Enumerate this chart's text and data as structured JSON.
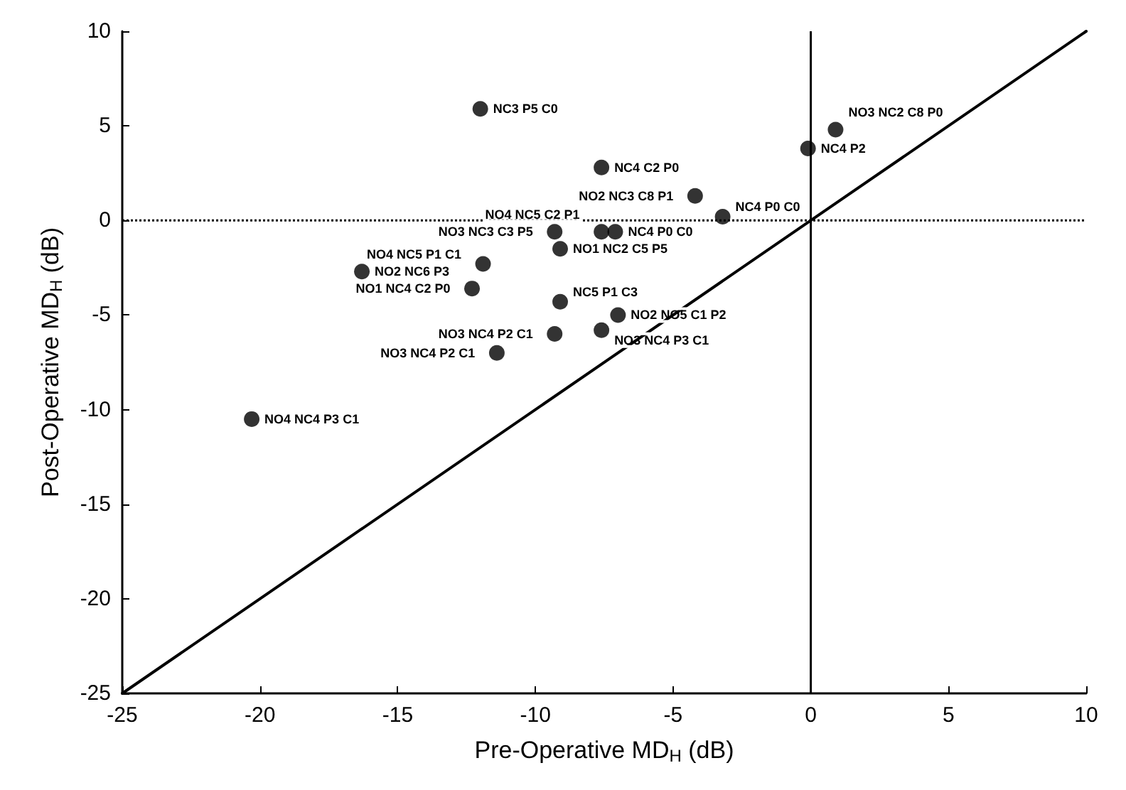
{
  "chart_data": {
    "type": "scatter",
    "xlabel": "Pre-Operative MD$_{H}$ (dB)",
    "ylabel": "Post-Operative MD$_{H}$ (dB)",
    "xlim": [
      -25,
      10
    ],
    "ylim": [
      -25,
      10
    ],
    "xticks": [
      -25,
      -20,
      -15,
      -10,
      -5,
      0,
      5,
      10
    ],
    "yticks": [
      -25,
      -20,
      -15,
      -10,
      -5,
      0,
      5,
      10
    ],
    "grid": false,
    "marker": "circle",
    "series": [
      {
        "color": "#000000",
        "x": [
          -12,
          -7.6,
          -0.1,
          0.9,
          -4.2,
          -3.2,
          -9.3,
          -9.1,
          -7.6,
          -7.1,
          -11.9,
          -16.3,
          -12.3,
          -9.1,
          -7,
          -7.6,
          -9.3,
          -11.4,
          -20.3
        ],
        "values": [
          5.9,
          2.8,
          3.8,
          4.8,
          1.3,
          0.2,
          -0.6,
          -1.5,
          -0.6,
          -0.6,
          -2.3,
          -2.7,
          -3.6,
          -4.3,
          -5,
          -5.8,
          -6,
          -7,
          -10.5
        ]
      },
      {
        "type": "line",
        "color": "#000000",
        "line_style": "solid",
        "marker": "none",
        "x": [
          -25,
          10
        ],
        "values": [
          -25,
          10
        ]
      }
    ],
    "ref_lines": [
      {
        "axis": "x",
        "value": 0,
        "line_style": "solid",
        "color": "#000000"
      },
      {
        "axis": "y",
        "value": 0,
        "line_style": "dotted",
        "color": "#000000"
      }
    ],
    "annotations": [
      {
        "text": "NC3 P5 C0",
        "x": -12,
        "y": 5.9
      },
      {
        "text": "NC4 C2 P0",
        "x": -7.6,
        "y": 2.8
      },
      {
        "text": "NC4 P2",
        "x": -0.1,
        "y": 3.8
      },
      {
        "text": "NO3 NC2 C8 P0",
        "x": 0.9,
        "y": 4.8
      },
      {
        "text": "NO2 NC3 C8 P1",
        "x": -4.2,
        "y": 1.3
      },
      {
        "text": "NC4 P0 C0",
        "x": -3.2,
        "y": 0.2
      },
      {
        "text": "NO3 NC3 C3 P5",
        "x": -9.3,
        "y": -0.6
      },
      {
        "text": "NO1 NC2 C5 P5",
        "x": -9.1,
        "y": -1.5
      },
      {
        "text": "NO4 NC5 C2 P1",
        "x": -7.6,
        "y": -0.6
      },
      {
        "text": "NC4 P0 C0",
        "x": -7.1,
        "y": -0.6
      },
      {
        "text": "NO4 NC5 P1 C1",
        "x": -11.9,
        "y": -2.3
      },
      {
        "text": "NO2 NC6 P3",
        "x": -16.3,
        "y": -2.7
      },
      {
        "text": "NO1 NC4 C2 P0",
        "x": -12.3,
        "y": -3.6
      },
      {
        "text": "NC5 P1 C3",
        "x": -9.1,
        "y": -4.3
      },
      {
        "text": "NO2 NO5 C1 P2",
        "x": -7,
        "y": -5
      },
      {
        "text": "NO3 NC4 P3 C1",
        "x": -7.6,
        "y": -5.8
      },
      {
        "text": "NO3 NC4 P2 C1",
        "x": -9.3,
        "y": -6
      },
      {
        "text": "NO3 NC4 P2 C1",
        "x": -11.4,
        "y": -7
      },
      {
        "text": "NO4 NC4 P3 C1",
        "x": -20.3,
        "y": -10.5
      }
    ]
  }
}
